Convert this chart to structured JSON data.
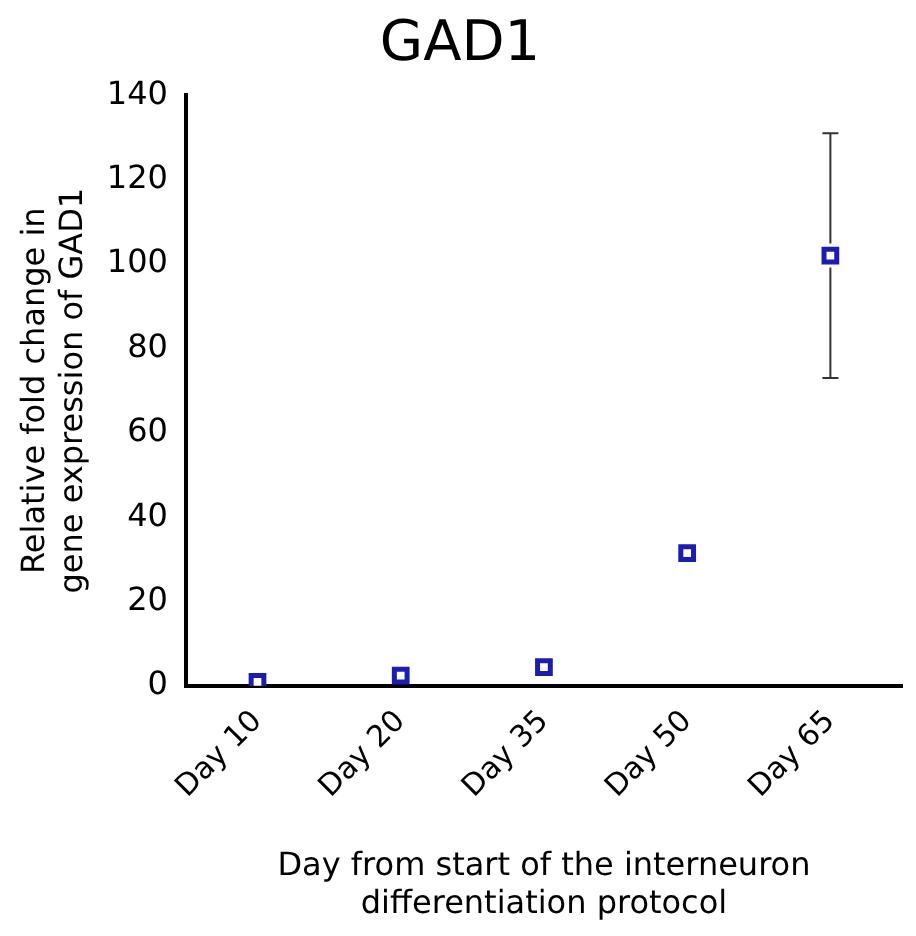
{
  "chart_data": {
    "type": "scatter",
    "title": "GAD1",
    "xlabel": "Day from start of the interneuron differentiation protocol",
    "ylabel": "Relative fold change in gene expression of GAD1",
    "categories": [
      "Day 10",
      "Day 20",
      "Day 35",
      "Day 50",
      "Day 65"
    ],
    "series": [
      {
        "color": "#1c1cb0",
        "values": [
          1,
          2.5,
          4.5,
          31.5,
          102
        ],
        "errors": [
          null,
          null,
          null,
          null,
          [
            73,
            131
          ]
        ]
      }
    ],
    "ylim": [
      0,
      140
    ],
    "yticks": [
      0,
      20,
      40,
      60,
      80,
      100,
      120,
      140
    ],
    "marker": "square",
    "grid": false,
    "legend": false
  }
}
